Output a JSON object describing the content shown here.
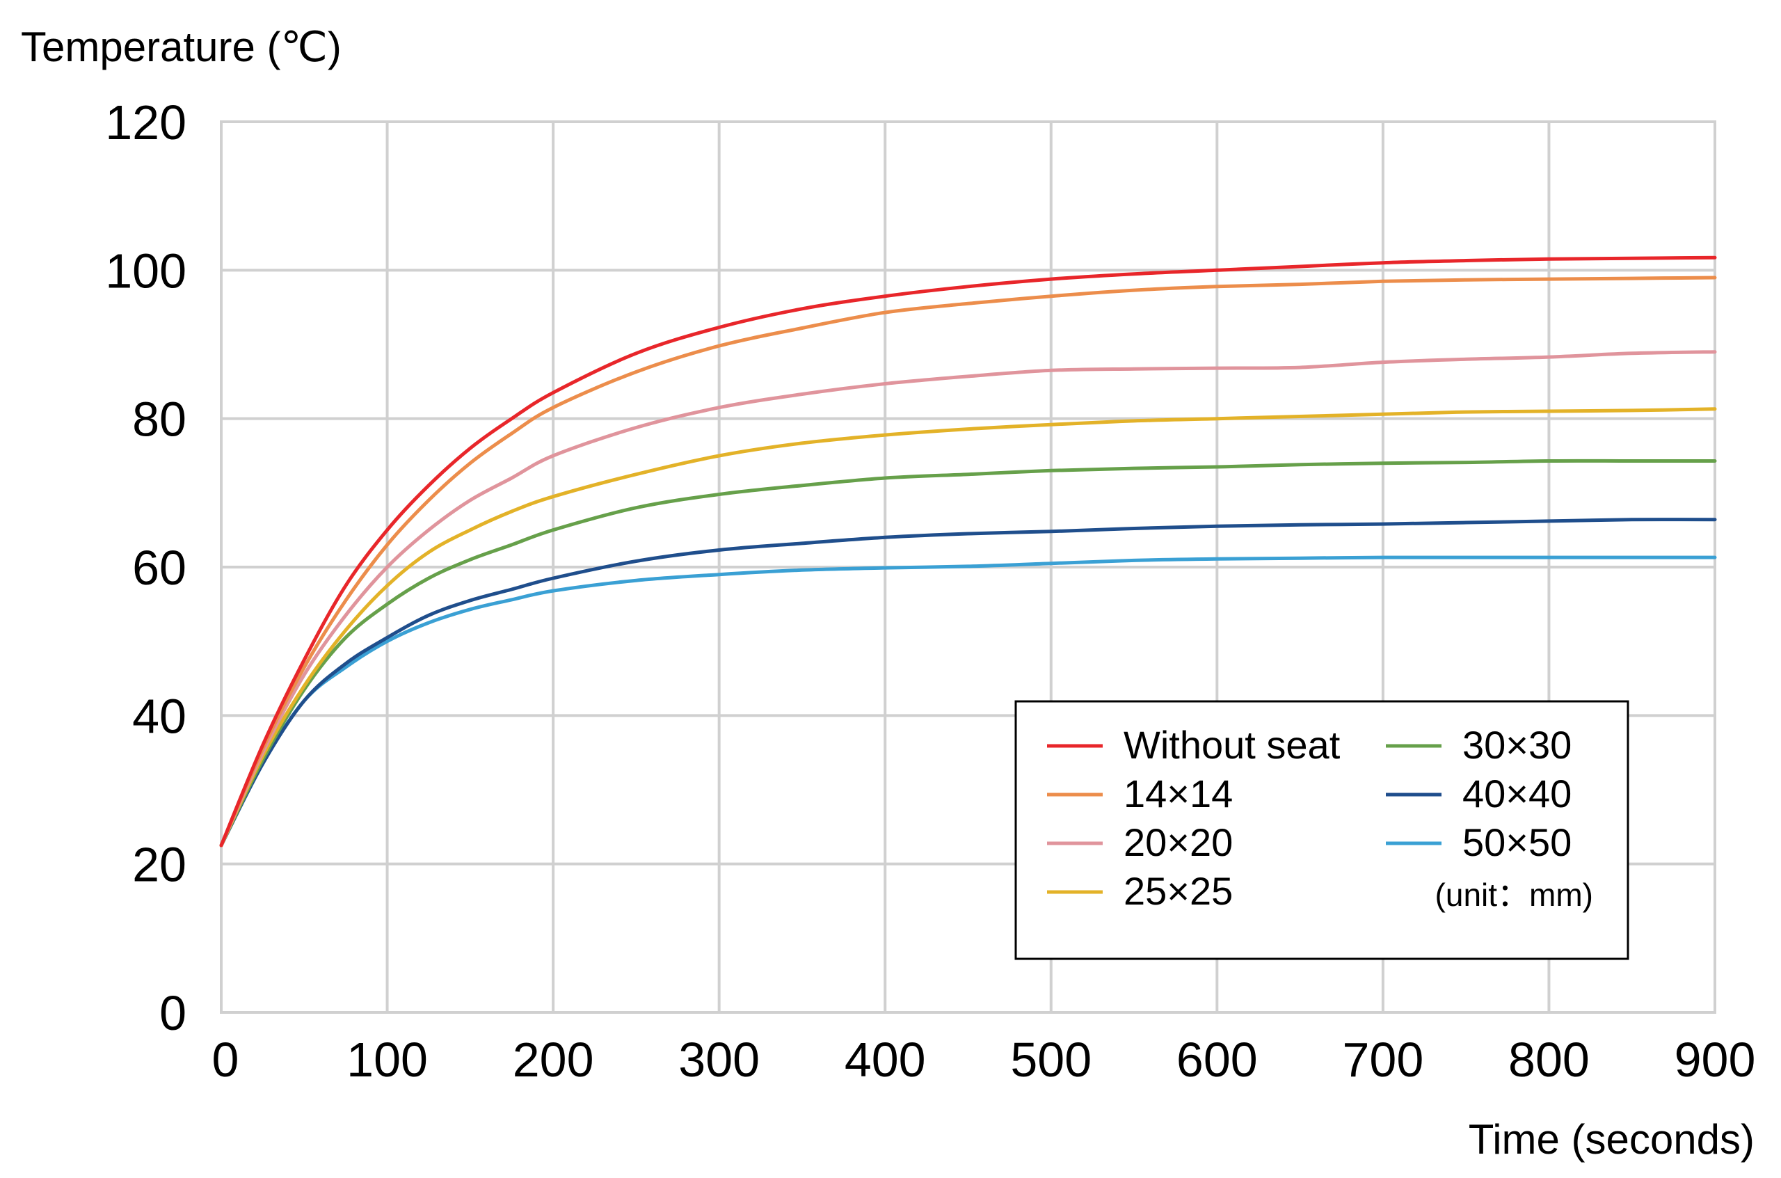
{
  "chart_data": {
    "type": "line",
    "ylabel": "Temperature (℃)",
    "xlabel": "Time (seconds)",
    "xlim": [
      0,
      900
    ],
    "ylim": [
      0,
      120
    ],
    "x_ticks": [
      0,
      100,
      200,
      300,
      400,
      500,
      600,
      700,
      800,
      900
    ],
    "y_ticks": [
      0,
      20,
      40,
      60,
      80,
      100,
      120
    ],
    "grid": true,
    "legend_position": "lower-right",
    "legend_note": "(unit：mm)",
    "x": [
      0,
      25,
      50,
      75,
      100,
      125,
      150,
      175,
      200,
      250,
      300,
      350,
      400,
      450,
      500,
      550,
      600,
      650,
      700,
      750,
      800,
      850,
      900
    ],
    "series": [
      {
        "name": "Without seat",
        "color": "#e8262a",
        "values": [
          22.5,
          36.0,
          47.5,
          57.5,
          65.0,
          71.0,
          76.0,
          80.0,
          83.5,
          88.8,
          92.3,
          94.8,
          96.5,
          97.8,
          98.8,
          99.5,
          100.0,
          100.5,
          101.0,
          101.3,
          101.5,
          101.6,
          101.7
        ]
      },
      {
        "name": "14×14",
        "color": "#ec8d4b",
        "values": [
          22.5,
          35.5,
          46.5,
          55.5,
          63.0,
          69.0,
          74.0,
          78.0,
          81.5,
          86.3,
          89.8,
          92.2,
          94.3,
          95.5,
          96.5,
          97.3,
          97.8,
          98.1,
          98.5,
          98.7,
          98.8,
          98.9,
          99.0
        ]
      },
      {
        "name": "20×20",
        "color": "#e0949c",
        "values": [
          22.5,
          35.0,
          45.5,
          53.5,
          60.0,
          65.0,
          69.0,
          72.0,
          75.0,
          78.8,
          81.5,
          83.3,
          84.7,
          85.7,
          86.5,
          86.7,
          86.8,
          86.9,
          87.6,
          88.0,
          88.3,
          88.8,
          89.0
        ]
      },
      {
        "name": "25×25",
        "color": "#e3b228",
        "values": [
          22.5,
          34.5,
          44.0,
          51.5,
          57.5,
          62.0,
          65.0,
          67.5,
          69.5,
          72.5,
          75.0,
          76.7,
          77.8,
          78.6,
          79.2,
          79.7,
          80.0,
          80.3,
          80.6,
          80.9,
          81.0,
          81.1,
          81.3
        ]
      },
      {
        "name": "30×30",
        "color": "#66a04a",
        "values": [
          22.5,
          34.0,
          43.5,
          50.5,
          55.0,
          58.5,
          61.0,
          63.0,
          65.0,
          68.0,
          69.8,
          71.0,
          72.0,
          72.5,
          73.0,
          73.3,
          73.5,
          73.8,
          74.0,
          74.1,
          74.3,
          74.3,
          74.3
        ]
      },
      {
        "name": "40×40",
        "color": "#1f4e8c",
        "values": [
          22.5,
          33.5,
          42.0,
          47.0,
          50.5,
          53.5,
          55.5,
          57.0,
          58.5,
          60.8,
          62.3,
          63.2,
          64.0,
          64.5,
          64.8,
          65.2,
          65.5,
          65.7,
          65.8,
          66.0,
          66.2,
          66.4,
          66.4
        ]
      },
      {
        "name": "50×50",
        "color": "#3aa0d4",
        "values": [
          22.5,
          33.5,
          42.0,
          46.5,
          50.0,
          52.5,
          54.3,
          55.6,
          56.8,
          58.2,
          59.0,
          59.6,
          59.9,
          60.1,
          60.5,
          60.9,
          61.1,
          61.2,
          61.3,
          61.3,
          61.3,
          61.3,
          61.3
        ]
      }
    ]
  }
}
